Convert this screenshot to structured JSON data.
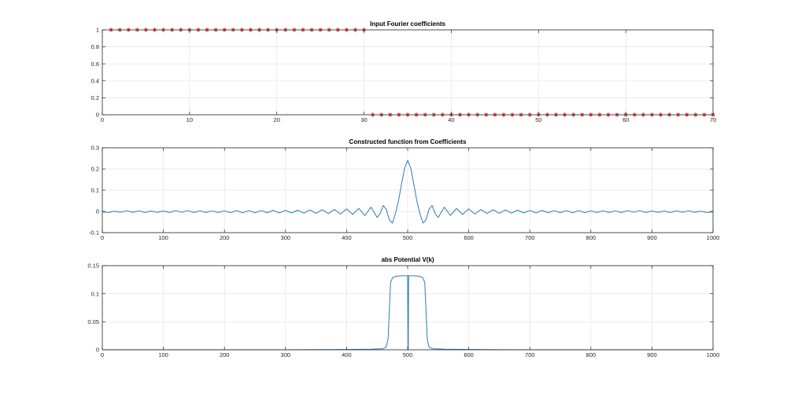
{
  "colors": {
    "marker": "#d62728",
    "line": "#2b7bba"
  },
  "chart_data": [
    {
      "type": "scatter",
      "title": "Input Fourier coefficients",
      "xlabel": "",
      "ylabel": "",
      "xlim": [
        0,
        70
      ],
      "ylim": [
        0,
        1
      ],
      "xticks": [
        0,
        10,
        20,
        30,
        40,
        50,
        60,
        70
      ],
      "yticks": [
        0,
        0.2,
        0.4,
        0.6,
        0.8,
        1
      ],
      "ytick_labels": [
        "0",
        "0.2",
        "0.4",
        "0.6",
        "0.8",
        "1"
      ],
      "grid": true,
      "marker": "*",
      "series": [
        {
          "x": [
            1,
            2,
            3,
            4,
            5,
            6,
            7,
            8,
            9,
            10,
            11,
            12,
            13,
            14,
            15,
            16,
            17,
            18,
            19,
            20,
            21,
            22,
            23,
            24,
            25,
            26,
            27,
            28,
            29,
            30,
            31,
            32,
            33,
            34,
            35,
            36,
            37,
            38,
            39,
            40,
            41,
            42,
            43,
            44,
            45,
            46,
            47,
            48,
            49,
            50,
            51,
            52,
            53,
            54,
            55,
            56,
            57,
            58,
            59,
            60,
            61,
            62,
            63,
            64,
            65,
            66,
            67,
            68,
            69,
            70
          ],
          "y": [
            1,
            1,
            1,
            1,
            1,
            1,
            1,
            1,
            1,
            1,
            1,
            1,
            1,
            1,
            1,
            1,
            1,
            1,
            1,
            1,
            1,
            1,
            1,
            1,
            1,
            1,
            1,
            1,
            1,
            1,
            0,
            0,
            0,
            0,
            0,
            0,
            0,
            0,
            0,
            0,
            0,
            0,
            0,
            0,
            0,
            0,
            0,
            0,
            0,
            0,
            0,
            0,
            0,
            0,
            0,
            0,
            0,
            0,
            0,
            0,
            0,
            0,
            0,
            0,
            0,
            0,
            0,
            0,
            0,
            0
          ]
        }
      ]
    },
    {
      "type": "line",
      "title": "Constructed function from Coefficients",
      "xlabel": "",
      "ylabel": "",
      "xlim": [
        0,
        1000
      ],
      "ylim": [
        -0.1,
        0.3
      ],
      "xticks": [
        0,
        100,
        200,
        300,
        400,
        500,
        600,
        700,
        800,
        900,
        1000
      ],
      "yticks": [
        -0.1,
        0,
        0.1,
        0.2,
        0.3
      ],
      "ytick_labels": [
        "-0.1",
        "0",
        "0.1",
        "0.2",
        "0.3"
      ],
      "grid": true,
      "series": [
        {
          "x": [
            0,
            10,
            20,
            30,
            40,
            50,
            60,
            70,
            80,
            90,
            100,
            110,
            120,
            130,
            140,
            150,
            160,
            170,
            180,
            190,
            200,
            210,
            220,
            230,
            240,
            250,
            260,
            270,
            280,
            290,
            300,
            310,
            320,
            330,
            340,
            350,
            360,
            370,
            380,
            390,
            400,
            410,
            420,
            430,
            440,
            450,
            455,
            460,
            465,
            470,
            475,
            480,
            485,
            490,
            495,
            500,
            505,
            510,
            515,
            520,
            525,
            530,
            535,
            540,
            545,
            550,
            560,
            570,
            580,
            590,
            600,
            610,
            620,
            630,
            640,
            650,
            660,
            670,
            680,
            690,
            700,
            710,
            720,
            730,
            740,
            750,
            760,
            770,
            780,
            790,
            800,
            810,
            820,
            830,
            840,
            850,
            860,
            870,
            880,
            890,
            900,
            910,
            920,
            930,
            940,
            950,
            960,
            970,
            980,
            990,
            1000
          ],
          "y": [
            -0.002,
            -0.005,
            0.001,
            -0.004,
            0.003,
            -0.004,
            0.003,
            -0.005,
            0.002,
            -0.004,
            0.002,
            -0.005,
            0.004,
            -0.004,
            0.004,
            -0.005,
            0.003,
            -0.005,
            0.003,
            -0.005,
            0.003,
            -0.006,
            0.004,
            -0.006,
            0.004,
            -0.006,
            0.004,
            -0.006,
            0.005,
            -0.007,
            0.005,
            -0.007,
            0.006,
            -0.008,
            0.007,
            -0.009,
            0.008,
            -0.01,
            0.009,
            -0.012,
            0.012,
            -0.014,
            0.014,
            -0.019,
            0.02,
            -0.028,
            -0.01,
            0.028,
            0.01,
            -0.04,
            -0.055,
            -0.01,
            0.05,
            0.13,
            0.205,
            0.24,
            0.205,
            0.13,
            0.05,
            -0.01,
            -0.055,
            -0.04,
            0.01,
            0.028,
            -0.01,
            -0.028,
            0.02,
            -0.019,
            0.014,
            -0.014,
            0.012,
            -0.012,
            0.009,
            -0.01,
            0.008,
            -0.009,
            0.007,
            -0.008,
            0.006,
            -0.007,
            0.005,
            -0.007,
            0.005,
            -0.006,
            0.004,
            -0.006,
            0.004,
            -0.006,
            0.004,
            -0.006,
            0.003,
            -0.005,
            0.003,
            -0.005,
            0.003,
            -0.005,
            0.004,
            -0.004,
            0.004,
            -0.005,
            0.002,
            -0.004,
            0.002,
            -0.005,
            0.003,
            -0.004,
            0.003,
            -0.004,
            0.001,
            -0.005,
            -0.002
          ]
        }
      ]
    },
    {
      "type": "line",
      "title": "abs Potential V(k)",
      "xlabel": "",
      "ylabel": "",
      "xlim": [
        0,
        1000
      ],
      "ylim": [
        0,
        0.15
      ],
      "xticks": [
        0,
        100,
        200,
        300,
        400,
        500,
        600,
        700,
        800,
        900,
        1000
      ],
      "yticks": [
        0,
        0.05,
        0.1,
        0.15
      ],
      "ytick_labels": [
        "0",
        "0.05",
        "0.1",
        "0.15"
      ],
      "grid": true,
      "series": [
        {
          "x": [
            0,
            100,
            200,
            300,
            400,
            440,
            460,
            465,
            468,
            470,
            472,
            475,
            480,
            490,
            500,
            500.5,
            501,
            501.5,
            502,
            510,
            520,
            525,
            528,
            530,
            532,
            535,
            540,
            560,
            600,
            700,
            800,
            900,
            1000
          ],
          "y": [
            0,
            0,
            0,
            0,
            0.0005,
            0.001,
            0.002,
            0.005,
            0.02,
            0.07,
            0.12,
            0.128,
            0.131,
            0.132,
            0.132,
            0,
            0,
            0.132,
            0.132,
            0.132,
            0.131,
            0.128,
            0.12,
            0.07,
            0.02,
            0.005,
            0.002,
            0.001,
            0.0005,
            0,
            0,
            0,
            0
          ]
        }
      ]
    }
  ]
}
